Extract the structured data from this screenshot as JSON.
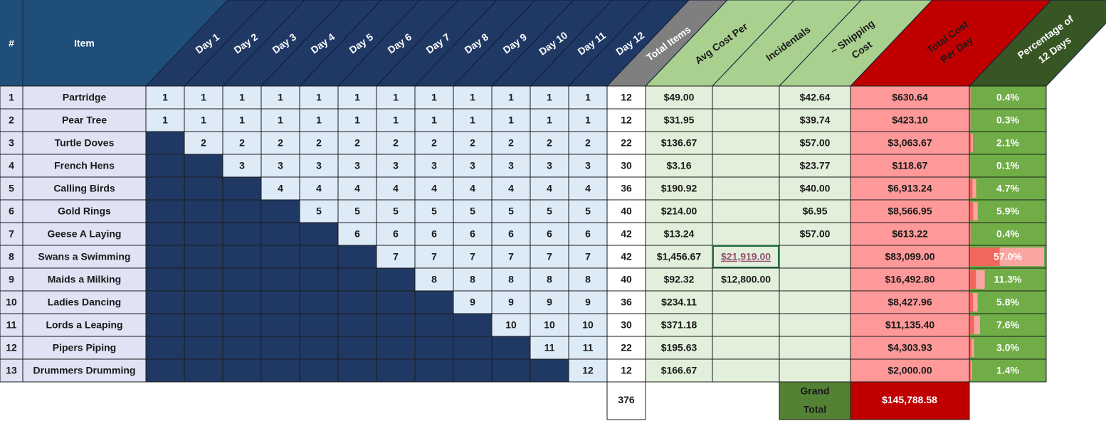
{
  "header": {
    "columns": [
      [
        "#"
      ],
      [
        "Item"
      ],
      [
        "Day 1"
      ],
      [
        "Day 2"
      ],
      [
        "Day 3"
      ],
      [
        "Day 4"
      ],
      [
        "Day 5"
      ],
      [
        "Day 6"
      ],
      [
        "Day 7"
      ],
      [
        "Day 8"
      ],
      [
        "Day 9"
      ],
      [
        "Day 10"
      ],
      [
        "Day 11"
      ],
      [
        "Day 12"
      ],
      [
        "Total Items"
      ],
      [
        "Avg Cost Per"
      ],
      [
        "Incidentals"
      ],
      [
        "~ Shipping",
        "Cost"
      ],
      [
        "Total Cost",
        "Per Day"
      ],
      [
        "Percentage of",
        "12 Days"
      ]
    ]
  },
  "rows": [
    {
      "number": 1,
      "item": "Partridge",
      "days": [
        1,
        1,
        1,
        1,
        1,
        1,
        1,
        1,
        1,
        1,
        1,
        1
      ],
      "total_items": 12,
      "avg_cost": "$49.00",
      "incidentals": null,
      "shipping": "$42.64",
      "total_cost": "$630.64",
      "percentage": "0.4%"
    },
    {
      "number": 2,
      "item": "Pear Tree",
      "days": [
        1,
        1,
        1,
        1,
        1,
        1,
        1,
        1,
        1,
        1,
        1,
        1
      ],
      "total_items": 12,
      "avg_cost": "$31.95",
      "incidentals": null,
      "shipping": "$39.74",
      "total_cost": "$423.10",
      "percentage": "0.3%"
    },
    {
      "number": 3,
      "item": "Turtle Doves",
      "days": [
        null,
        2,
        2,
        2,
        2,
        2,
        2,
        2,
        2,
        2,
        2,
        2
      ],
      "total_items": 22,
      "avg_cost": "$136.67",
      "incidentals": null,
      "shipping": "$57.00",
      "total_cost": "$3,063.67",
      "percentage": "2.1%"
    },
    {
      "number": 4,
      "item": "French Hens",
      "days": [
        null,
        null,
        3,
        3,
        3,
        3,
        3,
        3,
        3,
        3,
        3,
        3
      ],
      "total_items": 30,
      "avg_cost": "$3.16",
      "incidentals": null,
      "shipping": "$23.77",
      "total_cost": "$118.67",
      "percentage": "0.1%"
    },
    {
      "number": 5,
      "item": "Calling Birds",
      "days": [
        null,
        null,
        null,
        4,
        4,
        4,
        4,
        4,
        4,
        4,
        4,
        4
      ],
      "total_items": 36,
      "avg_cost": "$190.92",
      "incidentals": null,
      "shipping": "$40.00",
      "total_cost": "$6,913.24",
      "percentage": "4.7%"
    },
    {
      "number": 6,
      "item": "Gold Rings",
      "days": [
        null,
        null,
        null,
        null,
        5,
        5,
        5,
        5,
        5,
        5,
        5,
        5
      ],
      "total_items": 40,
      "avg_cost": "$214.00",
      "incidentals": null,
      "shipping": "$6.95",
      "total_cost": "$8,566.95",
      "percentage": "5.9%"
    },
    {
      "number": 7,
      "item": "Geese A Laying",
      "days": [
        null,
        null,
        null,
        null,
        null,
        6,
        6,
        6,
        6,
        6,
        6,
        6
      ],
      "total_items": 42,
      "avg_cost": "$13.24",
      "incidentals": null,
      "shipping": "$57.00",
      "total_cost": "$613.22",
      "percentage": "0.4%"
    },
    {
      "number": 8,
      "item": "Swans a Swimming",
      "days": [
        null,
        null,
        null,
        null,
        null,
        null,
        7,
        7,
        7,
        7,
        7,
        7
      ],
      "total_items": 42,
      "avg_cost": "$1,456.67",
      "incidentals": "$21,919.00",
      "shipping": null,
      "total_cost": "$83,099.00",
      "percentage": "57.0%"
    },
    {
      "number": 9,
      "item": "Maids a Milking",
      "days": [
        null,
        null,
        null,
        null,
        null,
        null,
        null,
        8,
        8,
        8,
        8,
        8
      ],
      "total_items": 40,
      "avg_cost": "$92.32",
      "incidentals": "$12,800.00",
      "shipping": null,
      "total_cost": "$16,492.80",
      "percentage": "11.3%"
    },
    {
      "number": 10,
      "item": "Ladies Dancing",
      "days": [
        null,
        null,
        null,
        null,
        null,
        null,
        null,
        null,
        9,
        9,
        9,
        9
      ],
      "total_items": 36,
      "avg_cost": "$234.11",
      "incidentals": null,
      "shipping": null,
      "total_cost": "$8,427.96",
      "percentage": "5.8%"
    },
    {
      "number": 11,
      "item": "Lords a Leaping",
      "days": [
        null,
        null,
        null,
        null,
        null,
        null,
        null,
        null,
        null,
        10,
        10,
        10
      ],
      "total_items": 30,
      "avg_cost": "$371.18",
      "incidentals": null,
      "shipping": null,
      "total_cost": "$11,135.40",
      "percentage": "7.6%"
    },
    {
      "number": 12,
      "item": "Pipers Piping",
      "days": [
        null,
        null,
        null,
        null,
        null,
        null,
        null,
        null,
        null,
        null,
        11,
        11
      ],
      "total_items": 22,
      "avg_cost": "$195.63",
      "incidentals": null,
      "shipping": null,
      "total_cost": "$4,303.93",
      "percentage": "3.0%"
    },
    {
      "number": 13,
      "item": "Drummers Drumming",
      "days": [
        null,
        null,
        null,
        null,
        null,
        null,
        null,
        null,
        null,
        null,
        null,
        12
      ],
      "total_items": 12,
      "avg_cost": "$166.67",
      "incidentals": null,
      "shipping": null,
      "total_cost": "$2,000.00",
      "percentage": "1.4%"
    }
  ],
  "footer": {
    "total_items": 376,
    "grand_total_label": [
      "Grand",
      "Total"
    ],
    "grand_total": "$145,788.58"
  }
}
